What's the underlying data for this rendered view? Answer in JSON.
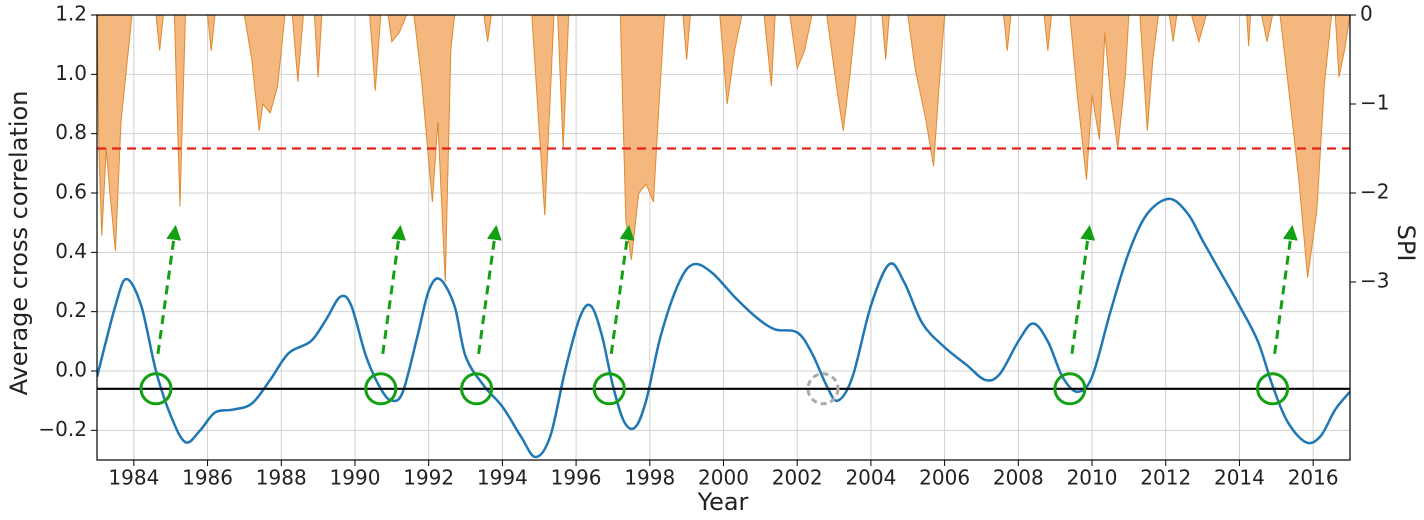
{
  "chart_data": {
    "type": "line",
    "x_label": "Year",
    "y_label": "Average cross correlation",
    "y2_label": "SPI",
    "xlim": [
      1983,
      2017
    ],
    "xticks": [
      1984,
      1986,
      1988,
      1990,
      1992,
      1994,
      1996,
      1998,
      2000,
      2002,
      2004,
      2006,
      2008,
      2010,
      2012,
      2014,
      2016
    ],
    "ylim": [
      -0.3,
      1.2
    ],
    "yticks": [
      {
        "value": -0.2,
        "label": "−0.2"
      },
      {
        "value": 0,
        "label": "0.0"
      },
      0.2,
      0.4,
      0.6,
      0.8,
      {
        "value": 1,
        "label": "1.0"
      },
      1.2
    ],
    "y2lim": [
      0,
      -5
    ],
    "y2ticks": [
      0,
      {
        "value": -1,
        "label": "−1"
      },
      {
        "value": -2,
        "label": "−2"
      },
      {
        "value": -3,
        "label": "−3"
      }
    ],
    "grid": true,
    "series": [
      {
        "type": "area",
        "axis": "y2",
        "color": "#f4b77e",
        "x": [
          1983.0,
          1983.05,
          1983.13,
          1983.25,
          1983.35,
          1983.5,
          1983.65,
          1983.8,
          1983.95,
          1984.6,
          1984.7,
          1984.8,
          1985.1,
          1985.25,
          1985.4,
          1986.0,
          1986.1,
          1986.2,
          1987.0,
          1987.2,
          1987.4,
          1987.5,
          1987.7,
          1987.9,
          1988.1,
          1988.3,
          1988.45,
          1988.6,
          1988.9,
          1989.0,
          1989.1,
          1990.4,
          1990.55,
          1990.7,
          1990.9,
          1991.0,
          1991.2,
          1991.4,
          1991.6,
          1991.8,
          1991.95,
          1992.1,
          1992.25,
          1992.45,
          1992.6,
          1992.7,
          1993.5,
          1993.6,
          1993.7,
          1994.8,
          1995.0,
          1995.15,
          1995.3,
          1995.4,
          1995.5,
          1995.65,
          1995.8,
          1997.2,
          1997.35,
          1997.5,
          1997.7,
          1997.9,
          1998.1,
          1998.25,
          1998.4,
          1998.9,
          1999.0,
          1999.1,
          1999.9,
          2000.1,
          2000.3,
          2000.5,
          2001.1,
          2001.3,
          2001.4,
          2001.8,
          2002.0,
          2002.2,
          2002.4,
          2002.8,
          2003.1,
          2003.25,
          2003.45,
          2003.6,
          2004.3,
          2004.4,
          2004.5,
          2005.0,
          2005.2,
          2005.5,
          2005.7,
          2005.85,
          2006.0,
          2007.6,
          2007.7,
          2007.8,
          2008.7,
          2008.8,
          2008.9,
          2009.4,
          2009.6,
          2009.85,
          2010.0,
          2010.2,
          2010.35,
          2010.5,
          2010.7,
          2010.9,
          2011.0,
          2011.3,
          2011.5,
          2011.65,
          2011.8,
          2012.1,
          2012.2,
          2012.3,
          2012.7,
          2012.9,
          2013.1,
          2014.2,
          2014.25,
          2014.3,
          2014.6,
          2014.75,
          2014.9,
          2015.1,
          2015.3,
          2015.6,
          2015.85,
          2016.1,
          2016.3,
          2016.5,
          2016.6,
          2016.7,
          2016.85,
          2017.0
        ],
        "values": [
          0,
          -1.5,
          -2.48,
          -1.5,
          -2.0,
          -2.65,
          -1.2,
          -0.6,
          0,
          0,
          -0.4,
          0,
          0,
          -2.15,
          0,
          0,
          -0.4,
          0,
          0,
          -0.5,
          -1.3,
          -1.0,
          -1.1,
          -0.8,
          0,
          0,
          -0.75,
          0,
          0,
          -0.7,
          0,
          0,
          -0.85,
          0,
          0,
          -0.3,
          -0.2,
          0,
          0,
          -0.7,
          -1.4,
          -2.1,
          -1.2,
          -3.0,
          -0.4,
          0,
          0,
          -0.3,
          0,
          0,
          -1.3,
          -2.25,
          -0.9,
          0,
          0,
          -1.5,
          0,
          0,
          -2.3,
          -2.75,
          -2.0,
          -1.9,
          -2.1,
          -1.0,
          0,
          0,
          -0.5,
          0,
          0,
          -1.0,
          -0.4,
          0,
          0,
          -0.8,
          0,
          0,
          -0.6,
          -0.4,
          0,
          0,
          -0.9,
          -1.3,
          -0.6,
          0,
          0,
          -0.5,
          0,
          0,
          -0.6,
          -1.2,
          -1.7,
          -0.8,
          0,
          0,
          -0.4,
          0,
          0,
          -0.4,
          0,
          0,
          -0.9,
          -1.85,
          -0.9,
          -1.4,
          -0.2,
          -0.9,
          -1.5,
          -0.7,
          0,
          0,
          -1.3,
          -0.5,
          0,
          0,
          -0.3,
          0,
          0,
          -0.3,
          0,
          0,
          -0.35,
          0,
          0,
          -0.3,
          0,
          0,
          -0.7,
          -1.8,
          -2.95,
          -2.2,
          -0.8,
          0,
          0,
          -0.7,
          -0.4,
          0
        ]
      },
      {
        "type": "line",
        "color": "#1f77b4",
        "x": [
          1983.0,
          1983.5,
          1983.8,
          1984.2,
          1984.6,
          1985.0,
          1985.4,
          1985.8,
          1986.2,
          1986.7,
          1987.2,
          1987.7,
          1988.2,
          1988.8,
          1989.2,
          1989.6,
          1989.9,
          1990.3,
          1990.7,
          1991.0,
          1991.3,
          1991.7,
          1992.0,
          1992.3,
          1992.7,
          1993.0,
          1993.5,
          1994.0,
          1994.5,
          1994.9,
          1995.3,
          1995.7,
          1996.1,
          1996.4,
          1996.7,
          1997.0,
          1997.3,
          1997.6,
          1997.9,
          1998.3,
          1998.8,
          1999.2,
          1999.7,
          2000.3,
          2000.9,
          2001.4,
          2002.0,
          2002.4,
          2002.8,
          2003.1,
          2003.5,
          2004.0,
          2004.5,
          2004.9,
          2005.4,
          2006.0,
          2006.6,
          2007.1,
          2007.5,
          2008.0,
          2008.4,
          2008.8,
          2009.2,
          2009.6,
          2010.0,
          2010.5,
          2011.0,
          2011.5,
          2012.1,
          2012.6,
          2013.0,
          2013.5,
          2014.0,
          2014.5,
          2014.9,
          2015.3,
          2015.8,
          2016.2,
          2016.6,
          2017.0
        ],
        "values": [
          -0.02,
          0.22,
          0.31,
          0.22,
          0.0,
          -0.15,
          -0.24,
          -0.2,
          -0.14,
          -0.13,
          -0.11,
          -0.03,
          0.06,
          0.1,
          0.17,
          0.25,
          0.22,
          0.05,
          -0.06,
          -0.1,
          -0.07,
          0.12,
          0.27,
          0.31,
          0.22,
          0.05,
          -0.05,
          -0.12,
          -0.22,
          -0.29,
          -0.22,
          0.0,
          0.18,
          0.22,
          0.12,
          -0.05,
          -0.17,
          -0.19,
          -0.1,
          0.12,
          0.3,
          0.36,
          0.33,
          0.25,
          0.18,
          0.14,
          0.13,
          0.06,
          -0.05,
          -0.1,
          -0.02,
          0.22,
          0.36,
          0.3,
          0.16,
          0.08,
          0.02,
          -0.03,
          -0.01,
          0.1,
          0.16,
          0.1,
          -0.02,
          -0.07,
          -0.02,
          0.2,
          0.4,
          0.53,
          0.58,
          0.53,
          0.44,
          0.33,
          0.22,
          0.1,
          -0.05,
          -0.17,
          -0.24,
          -0.22,
          -0.13,
          -0.07
        ]
      }
    ],
    "hlines": [
      {
        "value": -0.06,
        "color": "#000000"
      },
      {
        "value": -1.5,
        "axis": "y2",
        "color": "#e8221c",
        "dashed": true
      }
    ],
    "events": {
      "x": [
        1984.6,
        1990.7,
        1993.3,
        1996.9,
        2009.4,
        2014.9
      ],
      "color": "#13a013"
    },
    "excluded_events": {
      "x": [
        2002.7
      ],
      "color": "#aaaaaa"
    }
  }
}
